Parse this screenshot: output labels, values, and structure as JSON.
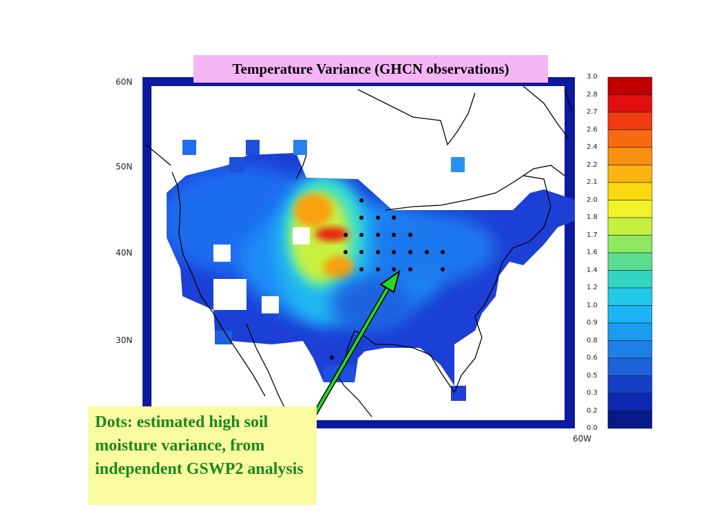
{
  "title": "Temperature Variance (GHCN observations)",
  "note": "Dots: estimated high soil moisture variance, from independent GSWP2 analysis",
  "lat_labels": [
    "60N",
    "50N",
    "40N",
    "30N"
  ],
  "lon_label": "60W",
  "colorbar": {
    "labels": [
      "3.0",
      "2.8",
      "2.7",
      "2.6",
      "2.4",
      "2.2",
      "2.1",
      "2.0",
      "1.8",
      "1.7",
      "1.6",
      "1.4",
      "1.2",
      "1.0",
      "0.9",
      "0.8",
      "0.6",
      "0.5",
      "0.3",
      "0.2",
      "0.0"
    ],
    "colors": [
      "#c00000",
      "#e01010",
      "#f03a10",
      "#f86a10",
      "#fa9010",
      "#fbb410",
      "#fbd810",
      "#f2f22a",
      "#c4f040",
      "#8ee860",
      "#5cdc90",
      "#32d6c0",
      "#22c8ea",
      "#1ab4f6",
      "#1a9cf0",
      "#1e80e4",
      "#1c62d8",
      "#1440c8",
      "#0c28b0",
      "#071a88"
    ],
    "marks": [
      "darkest",
      "dark blue"
    ]
  },
  "arrow_color": "#22dd22"
}
